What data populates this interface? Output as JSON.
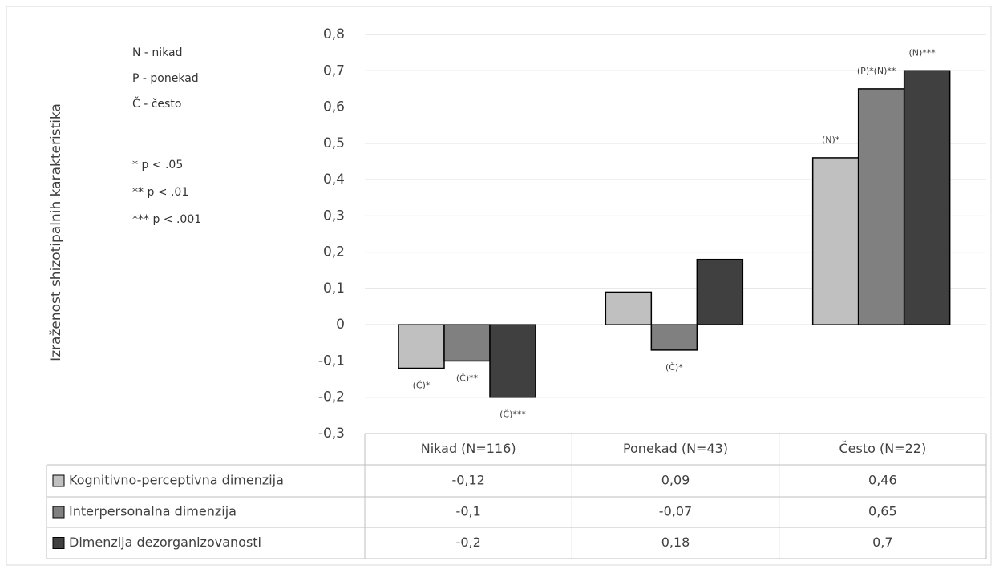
{
  "chart_data": {
    "type": "bar",
    "y_label": "Izraženost shizotipalnih karakteristika",
    "notes": [
      "N - nikad",
      "P - ponekad",
      "Č - često",
      "* p < .05",
      "** p < .01",
      "*** p < .001"
    ],
    "categories": [
      "Nikad (N=116)",
      "Ponekad (N=43)",
      "Često (N=22)"
    ],
    "series": [
      {
        "name": "Kognitivno-perceptivna dimenzija",
        "color": "#c0c0c0",
        "values": [
          -0.12,
          0.09,
          0.46
        ],
        "value_labels": [
          "-0,12",
          "0,09",
          "0,46"
        ],
        "annotations": [
          "(Č)*",
          null,
          "(N)*"
        ]
      },
      {
        "name": "Interpersonalna dimenzija",
        "color": "#808080",
        "values": [
          -0.1,
          -0.07,
          0.65
        ],
        "value_labels": [
          "-0,1",
          "-0,07",
          "0,65"
        ],
        "annotations": [
          "(Č)**",
          "(Č)*",
          "(P)*(N)**"
        ]
      },
      {
        "name": "Dimenzija dezorganizovanosti",
        "color": "#404040",
        "values": [
          -0.2,
          0.18,
          0.7
        ],
        "value_labels": [
          "-0,2",
          "0,18",
          "0,7"
        ],
        "annotations": [
          "(Č)***",
          null,
          "(N)***"
        ]
      }
    ],
    "ylim": [
      -0.3,
      0.8
    ],
    "yticks": [
      {
        "value": -0.3,
        "label": "-0,3"
      },
      {
        "value": -0.2,
        "label": "-0,2"
      },
      {
        "value": -0.1,
        "label": "-0,1"
      },
      0,
      {
        "value": 0.1,
        "label": "0,1"
      },
      {
        "value": 0.2,
        "label": "0,2"
      },
      {
        "value": 0.3,
        "label": "0,3"
      },
      {
        "value": 0.4,
        "label": "0,4"
      },
      {
        "value": 0.5,
        "label": "0,5"
      },
      {
        "value": 0.6,
        "label": "0,6"
      },
      {
        "value": 0.7,
        "label": "0,7"
      },
      {
        "value": 0.8,
        "label": "0,8"
      }
    ],
    "grid": true
  }
}
